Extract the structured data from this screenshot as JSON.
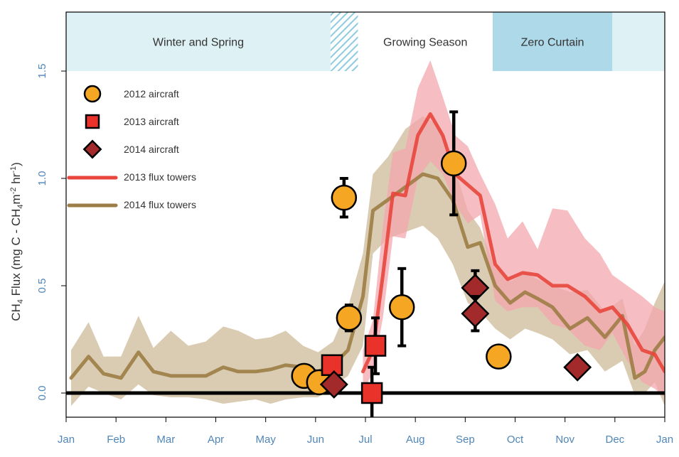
{
  "chart_data": {
    "type": "line",
    "ylabel": "CH4 Flux (mg C - CH4m-2 hr-1)",
    "ylabel_parts": {
      "main": "CH",
      "sub1": "4",
      "mid": " Flux (mg C - CH",
      "sub2": "4",
      "end": "m",
      "sup1": "-2",
      "end2": " hr",
      "sup2": "-1",
      "close": ")"
    },
    "xlim": [
      0,
      12
    ],
    "ylim": [
      -0.12,
      1.75
    ],
    "x_ticks": [
      {
        "label": "Jan",
        "value": 0
      },
      {
        "label": "Feb",
        "value": 1
      },
      {
        "label": "Mar",
        "value": 2
      },
      {
        "label": "Apr",
        "value": 3
      },
      {
        "label": "May",
        "value": 4
      },
      {
        "label": "Jun",
        "value": 5
      },
      {
        "label": "Jul",
        "value": 6
      },
      {
        "label": "Aug",
        "value": 7
      },
      {
        "label": "Sep",
        "value": 8
      },
      {
        "label": "Oct",
        "value": 9
      },
      {
        "label": "Nov",
        "value": 10
      },
      {
        "label": "Dec",
        "value": 11
      },
      {
        "label": "Jan",
        "value": 12
      }
    ],
    "y_ticks": [
      {
        "label": "0.0",
        "value": 0.0
      },
      {
        "label": "0.5",
        "value": 0.5
      },
      {
        "label": "1.0",
        "value": 1.0
      },
      {
        "label": "1.5",
        "value": 1.5
      }
    ],
    "season_bands": [
      {
        "label": "Winter and Spring",
        "x0": 0.0,
        "x1": 5.3,
        "color": "#def1f4"
      },
      {
        "label": "",
        "x0": 5.3,
        "x1": 5.85,
        "color": "#9fd3e3",
        "hatched": true
      },
      {
        "label": "Growing Season",
        "x0": 5.85,
        "x1": 8.55,
        "color": "#ffffff"
      },
      {
        "label": "Zero Curtain",
        "x0": 8.55,
        "x1": 10.95,
        "color": "#add9e8"
      },
      {
        "label": "",
        "x0": 10.95,
        "x1": 12.0,
        "color": "#def1f4"
      }
    ],
    "season_band_ymin": 1.5,
    "zero_line": 0.0,
    "series": [
      {
        "name": "2014 flux towers",
        "color": "#9c7d45",
        "band_color": "#cdbb9a",
        "x": [
          0.1,
          0.45,
          0.75,
          1.1,
          1.45,
          1.75,
          2.1,
          2.45,
          2.8,
          3.15,
          3.45,
          3.8,
          4.1,
          4.4,
          4.75,
          5.05,
          5.35,
          5.65,
          5.95,
          6.15,
          6.45,
          6.8,
          7.15,
          7.45,
          7.75,
          8.05,
          8.3,
          8.6,
          8.9,
          9.2,
          9.45,
          9.75,
          10.1,
          10.45,
          10.8,
          11.15,
          11.4,
          11.6,
          11.8,
          12.0
        ],
        "mean": [
          0.07,
          0.17,
          0.09,
          0.07,
          0.19,
          0.1,
          0.08,
          0.08,
          0.08,
          0.12,
          0.1,
          0.1,
          0.11,
          0.13,
          0.12,
          0.1,
          0.13,
          0.2,
          0.45,
          0.85,
          0.9,
          0.96,
          1.02,
          1.0,
          0.9,
          0.68,
          0.7,
          0.5,
          0.42,
          0.47,
          0.44,
          0.4,
          0.3,
          0.35,
          0.26,
          0.36,
          0.07,
          0.1,
          0.2,
          0.26
        ],
        "upper": [
          0.2,
          0.33,
          0.17,
          0.17,
          0.36,
          0.21,
          0.29,
          0.22,
          0.24,
          0.31,
          0.29,
          0.25,
          0.26,
          0.29,
          0.22,
          0.19,
          0.24,
          0.4,
          0.65,
          1.02,
          1.1,
          1.23,
          1.29,
          1.25,
          1.08,
          0.85,
          0.77,
          0.58,
          0.52,
          0.56,
          0.53,
          0.5,
          0.47,
          0.48,
          0.38,
          0.44,
          0.22,
          0.3,
          0.42,
          0.52
        ],
        "lower": [
          -0.06,
          0.03,
          0.0,
          -0.03,
          0.04,
          -0.01,
          -0.02,
          -0.02,
          -0.03,
          -0.05,
          -0.04,
          -0.03,
          -0.05,
          -0.03,
          -0.02,
          -0.02,
          0.03,
          0.08,
          0.22,
          0.65,
          0.72,
          0.75,
          0.78,
          0.72,
          0.6,
          0.42,
          0.38,
          0.3,
          0.25,
          0.3,
          0.28,
          0.25,
          0.18,
          0.2,
          0.1,
          0.15,
          -0.01,
          0.0,
          0.05,
          -0.06
        ]
      },
      {
        "name": "2013 flux towers",
        "color": "#e8463c",
        "band_color": "#f3a7ae",
        "x": [
          5.95,
          6.15,
          6.35,
          6.55,
          6.8,
          7.05,
          7.3,
          7.55,
          7.8,
          8.05,
          8.3,
          8.6,
          8.85,
          9.15,
          9.45,
          9.75,
          10.05,
          10.4,
          10.7,
          10.95,
          11.25,
          11.55,
          11.8,
          12.0
        ],
        "mean": [
          0.1,
          0.2,
          0.55,
          0.93,
          0.92,
          1.2,
          1.3,
          1.2,
          1.02,
          0.97,
          0.92,
          0.6,
          0.53,
          0.56,
          0.55,
          0.5,
          0.5,
          0.45,
          0.38,
          0.4,
          0.32,
          0.2,
          0.18,
          0.1
        ],
        "upper": [
          0.2,
          0.34,
          0.78,
          1.12,
          1.14,
          1.42,
          1.55,
          1.38,
          1.2,
          1.15,
          1.02,
          0.88,
          0.72,
          0.8,
          0.67,
          0.86,
          0.85,
          0.72,
          0.65,
          0.55,
          0.5,
          0.45,
          0.4,
          0.38
        ],
        "lower": [
          0.0,
          0.1,
          0.35,
          0.73,
          0.72,
          1.0,
          1.08,
          1.02,
          0.88,
          0.79,
          0.83,
          0.43,
          0.38,
          0.4,
          0.4,
          0.32,
          0.3,
          0.22,
          0.2,
          0.28,
          0.15,
          0.05,
          0.02,
          -0.02
        ]
      }
    ],
    "aircraft": [
      {
        "name": "2012 aircraft",
        "marker": "circle",
        "fill": "#f5a623",
        "points": [
          {
            "x": 4.77,
            "y": 0.08,
            "err": null
          },
          {
            "x": 5.07,
            "y": 0.05,
            "err": null
          },
          {
            "x": 5.57,
            "y": 0.91,
            "err": 0.09
          },
          {
            "x": 5.67,
            "y": 0.35,
            "err": 0.06
          },
          {
            "x": 6.73,
            "y": 0.4,
            "err": 0.18
          },
          {
            "x": 7.77,
            "y": 1.07,
            "err": 0.24
          },
          {
            "x": 8.67,
            "y": 0.17,
            "err": null
          }
        ]
      },
      {
        "name": "2013 aircraft",
        "marker": "square",
        "fill": "#e8322a",
        "points": [
          {
            "x": 5.33,
            "y": 0.13,
            "err": null
          },
          {
            "x": 6.13,
            "y": 0.0,
            "err": 0.12
          },
          {
            "x": 6.2,
            "y": 0.22,
            "err": 0.13
          }
        ]
      },
      {
        "name": "2014 aircraft",
        "marker": "diamond",
        "fill": "#a32a2a",
        "points": [
          {
            "x": 5.37,
            "y": 0.04,
            "err": null
          },
          {
            "x": 8.2,
            "y": 0.49,
            "err": 0.08
          },
          {
            "x": 8.2,
            "y": 0.37,
            "err": 0.08
          },
          {
            "x": 10.25,
            "y": 0.12,
            "err": null
          }
        ]
      }
    ],
    "legend": [
      {
        "label": "2012 aircraft",
        "kind": "circle",
        "color": "#f5a623"
      },
      {
        "label": "2013 aircraft",
        "kind": "square",
        "color": "#e8322a"
      },
      {
        "label": "2014 aircraft",
        "kind": "diamond",
        "color": "#a32a2a"
      },
      {
        "label": "2013 flux towers",
        "kind": "line",
        "color": "#e8463c"
      },
      {
        "label": "2014 flux towers",
        "kind": "line",
        "color": "#9c7d45"
      }
    ],
    "legend_position": "top-left"
  }
}
